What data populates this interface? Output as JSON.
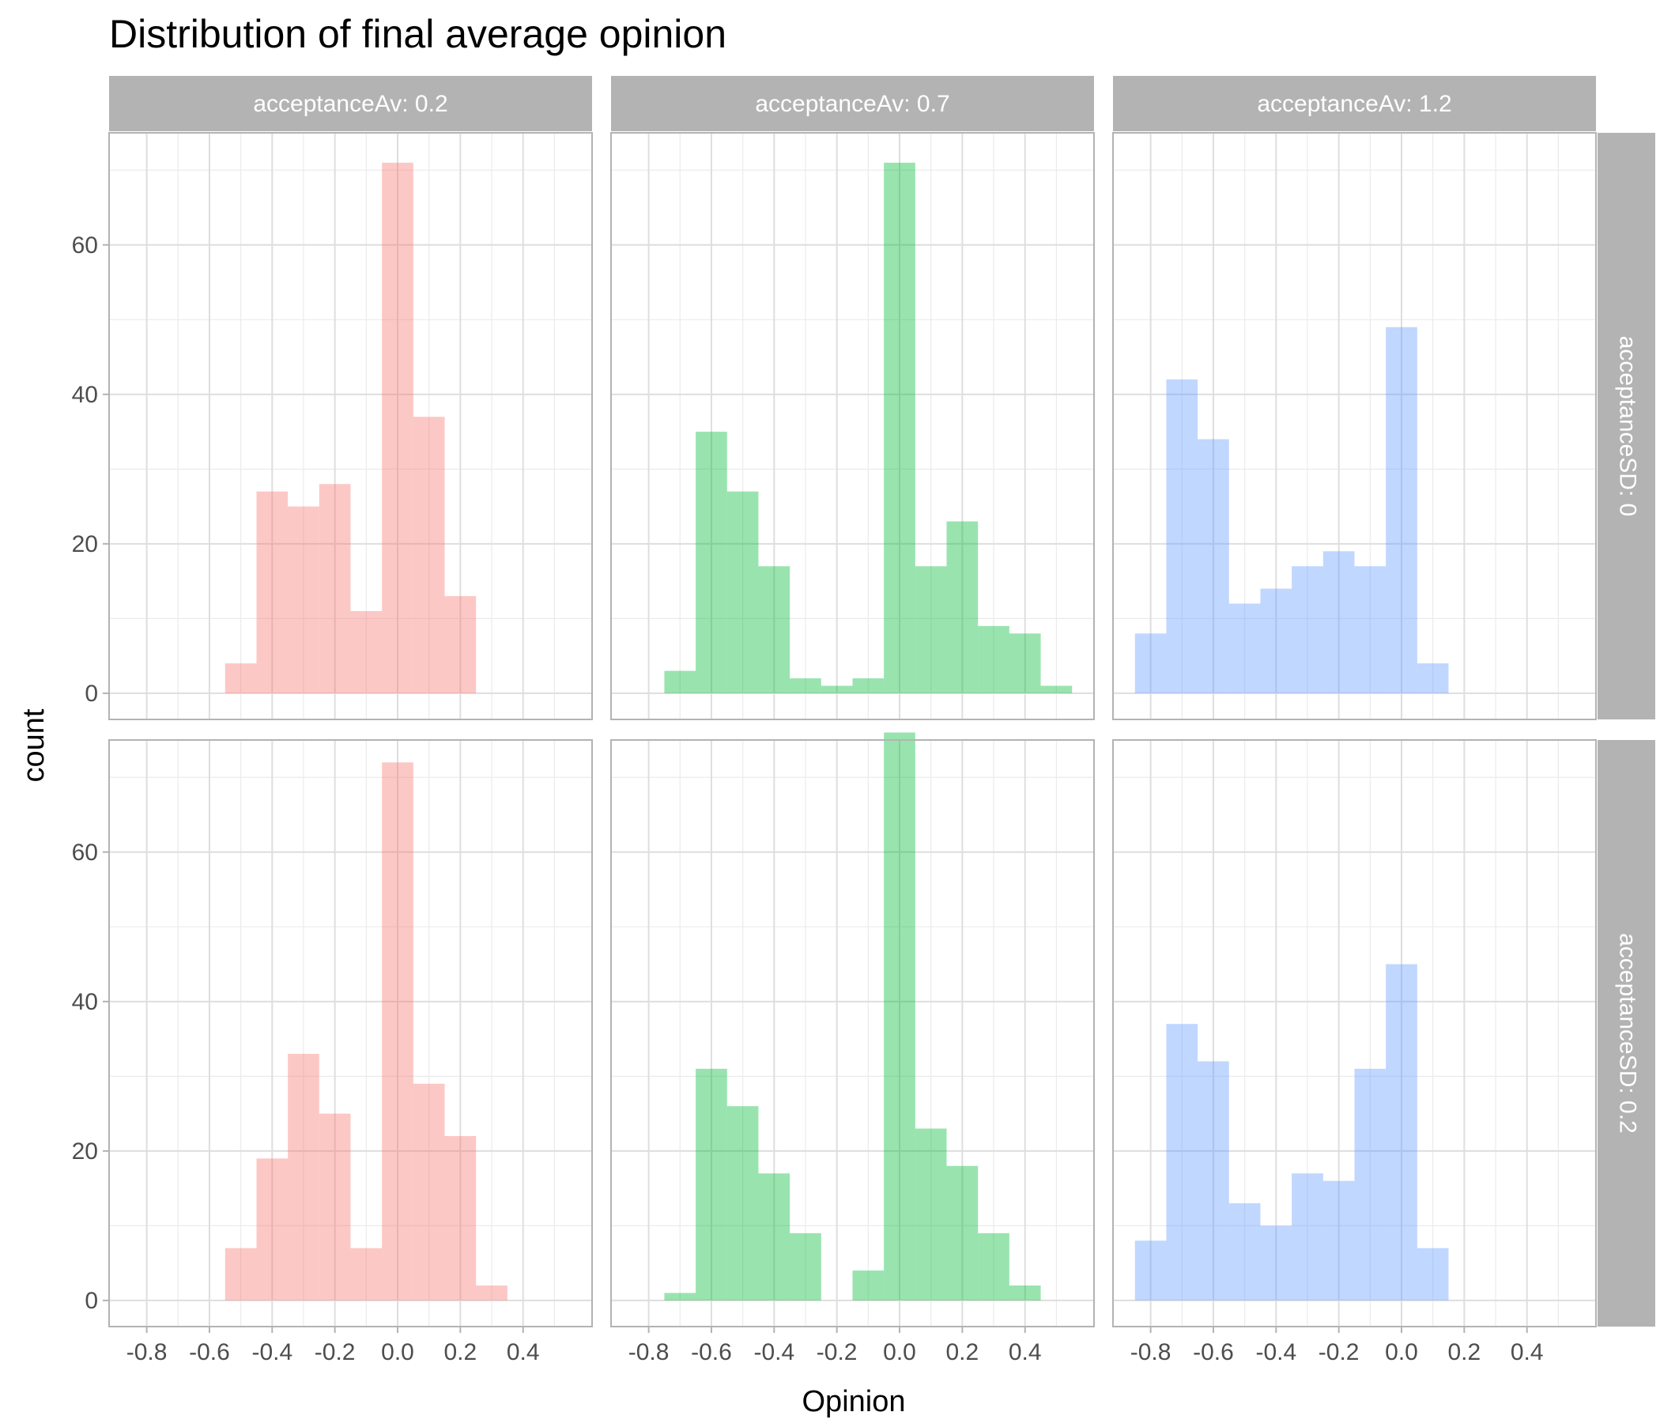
{
  "chart_data": {
    "type": "bar",
    "title": "Distribution of final average opinion",
    "xlabel": "Opinion",
    "ylabel": "count",
    "xlim": [
      -0.92,
      0.62
    ],
    "ylim": [
      -3.5,
      75
    ],
    "x_ticks": [
      "-0.8",
      "-0.6",
      "-0.4",
      "-0.2",
      "0.0",
      "0.2",
      "0.4"
    ],
    "y_ticks": [
      "0",
      "20",
      "40",
      "60"
    ],
    "bin_width": 0.1,
    "grid": true,
    "legend": "none",
    "col_facet_labels": [
      "acceptanceAv: 0.2",
      "acceptanceAv: 0.7",
      "acceptanceAv: 1.2"
    ],
    "row_facet_labels": [
      "acceptanceSD: 0",
      "acceptanceSD: 0.2"
    ],
    "col_colors": [
      "#F8766D",
      "#00BA38",
      "#619CFF"
    ],
    "panels": [
      {
        "row": 0,
        "col": 0,
        "bin_starts": [
          -0.55,
          -0.45,
          -0.35,
          -0.25,
          -0.15,
          -0.05,
          0.05,
          0.15
        ],
        "counts": [
          4,
          27,
          25,
          28,
          11,
          71,
          37,
          13
        ]
      },
      {
        "row": 0,
        "col": 1,
        "bin_starts": [
          -0.75,
          -0.65,
          -0.55,
          -0.45,
          -0.35,
          -0.25,
          -0.15,
          -0.05,
          0.05,
          0.15,
          0.25,
          0.35,
          0.45
        ],
        "counts": [
          3,
          35,
          27,
          17,
          2,
          1,
          2,
          71,
          17,
          23,
          9,
          8,
          1
        ]
      },
      {
        "row": 0,
        "col": 2,
        "bin_starts": [
          -0.85,
          -0.75,
          -0.65,
          -0.55,
          -0.45,
          -0.35,
          -0.25,
          -0.15,
          -0.05,
          0.05
        ],
        "counts": [
          8,
          42,
          34,
          12,
          14,
          17,
          19,
          17,
          49,
          4
        ]
      },
      {
        "row": 1,
        "col": 0,
        "bin_starts": [
          -0.55,
          -0.45,
          -0.35,
          -0.25,
          -0.15,
          -0.05,
          0.05,
          0.15,
          0.25
        ],
        "counts": [
          7,
          19,
          33,
          25,
          7,
          72,
          29,
          22,
          2
        ]
      },
      {
        "row": 1,
        "col": 1,
        "bin_starts": [
          -0.75,
          -0.65,
          -0.55,
          -0.45,
          -0.35,
          -0.15,
          -0.05,
          0.05,
          0.15,
          0.25,
          0.35
        ],
        "counts": [
          1,
          31,
          26,
          17,
          9,
          4,
          76,
          23,
          18,
          9,
          2
        ]
      },
      {
        "row": 1,
        "col": 2,
        "bin_starts": [
          -0.85,
          -0.75,
          -0.65,
          -0.55,
          -0.45,
          -0.35,
          -0.25,
          -0.15,
          -0.05,
          0.05
        ],
        "counts": [
          8,
          37,
          32,
          13,
          10,
          17,
          16,
          31,
          45,
          7
        ]
      }
    ]
  }
}
